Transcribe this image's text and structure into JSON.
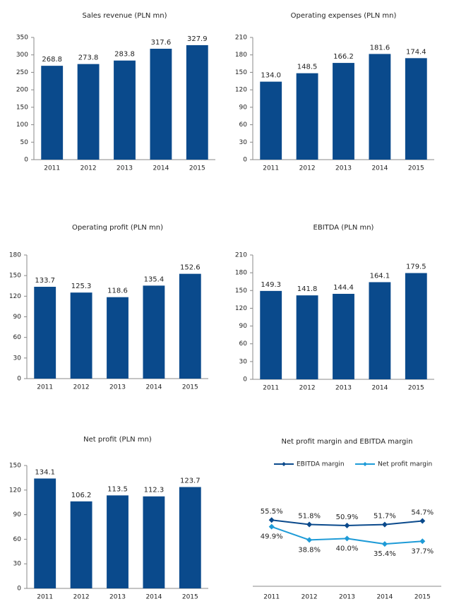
{
  "chart_data": [
    {
      "type": "bar",
      "title": "Sales revenue (PLN mn)",
      "categories": [
        "2011",
        "2012",
        "2013",
        "2014",
        "2015"
      ],
      "values": [
        268.8,
        273.8,
        283.8,
        317.6,
        327.9
      ],
      "value_labels": [
        "268.8",
        "273.8",
        "283.8",
        "317.6",
        "327.9"
      ],
      "color": "#0a4a8c",
      "ylim": [
        0,
        350
      ],
      "yticks": [
        0,
        50,
        100,
        150,
        200,
        250,
        300,
        350
      ]
    },
    {
      "type": "bar",
      "title": "Operating expenses (PLN mn)",
      "categories": [
        "2011",
        "2012",
        "2013",
        "2014",
        "2015"
      ],
      "values": [
        134.0,
        148.5,
        166.2,
        181.6,
        174.4
      ],
      "value_labels": [
        "134.0",
        "148.5",
        "166.2",
        "181.6",
        "174.4"
      ],
      "color": "#0a4a8c",
      "ylim": [
        0,
        210
      ],
      "yticks": [
        0,
        30,
        60,
        90,
        120,
        150,
        180,
        210
      ]
    },
    {
      "type": "bar",
      "title": "Operating profit (PLN mn)",
      "categories": [
        "2011",
        "2012",
        "2013",
        "2014",
        "2015"
      ],
      "values": [
        133.7,
        125.3,
        118.6,
        135.4,
        152.6
      ],
      "value_labels": [
        "133.7",
        "125.3",
        "118.6",
        "135.4",
        "152.6"
      ],
      "color": "#0a4a8c",
      "ylim": [
        0,
        180
      ],
      "yticks": [
        0,
        30,
        60,
        90,
        120,
        150,
        180
      ]
    },
    {
      "type": "bar",
      "title": "EBITDA (PLN mn)",
      "categories": [
        "2011",
        "2012",
        "2013",
        "2014",
        "2015"
      ],
      "values": [
        149.3,
        141.8,
        144.4,
        164.1,
        179.5
      ],
      "value_labels": [
        "149.3",
        "141.8",
        "144.4",
        "164.1",
        "179.5"
      ],
      "color": "#0a4a8c",
      "ylim": [
        0,
        210
      ],
      "yticks": [
        0,
        30,
        60,
        90,
        120,
        150,
        180,
        210
      ]
    },
    {
      "type": "bar",
      "title": "Net profit (PLN mn)",
      "categories": [
        "2011",
        "2012",
        "2013",
        "2014",
        "2015"
      ],
      "values": [
        134.1,
        106.2,
        113.5,
        112.3,
        123.7
      ],
      "value_labels": [
        "134.1",
        "106.2",
        "113.5",
        "112.3",
        "123.7"
      ],
      "color": "#0a4a8c",
      "ylim": [
        0,
        150
      ],
      "yticks": [
        0,
        30,
        60,
        90,
        120,
        150
      ]
    },
    {
      "type": "line",
      "title": "Net profit margin and EBITDA margin",
      "categories": [
        "2011",
        "2012",
        "2013",
        "2014",
        "2015"
      ],
      "legend": "top",
      "series": [
        {
          "name": "EBITDA margin",
          "color": "#0b4a8c",
          "values": [
            55.5,
            51.8,
            50.9,
            51.7,
            54.7
          ],
          "value_labels": [
            "55.5%",
            "51.8%",
            "50.9%",
            "51.7%",
            "54.7%"
          ]
        },
        {
          "name": "Net profit margin",
          "color": "#1e9bd7",
          "values": [
            49.9,
            38.8,
            40.0,
            35.4,
            37.7
          ],
          "value_labels": [
            "49.9%",
            "38.8%",
            "40.0%",
            "35.4%",
            "37.7%"
          ]
        }
      ]
    }
  ]
}
